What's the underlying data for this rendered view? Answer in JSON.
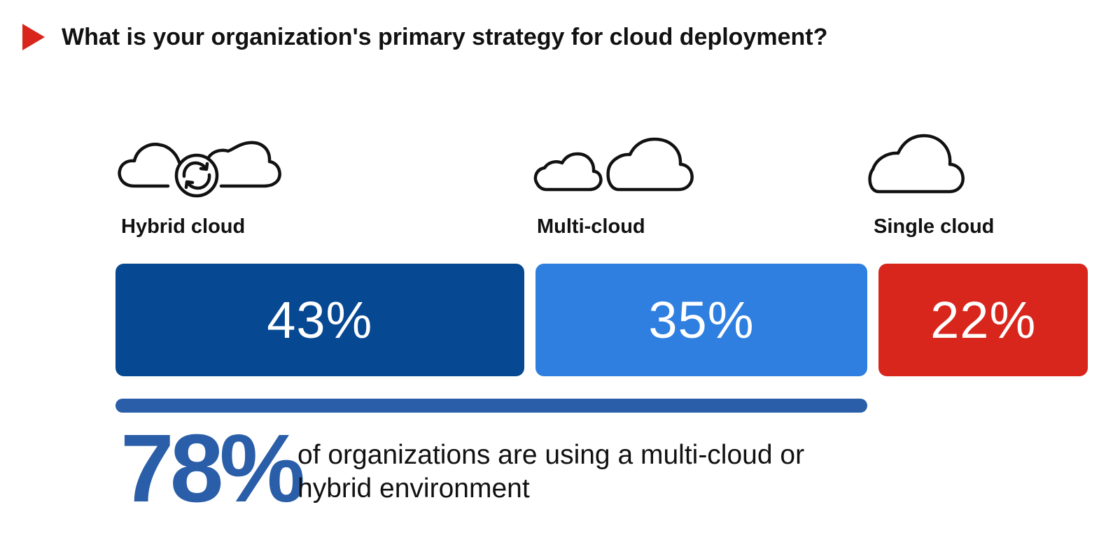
{
  "question": {
    "text": "What is your organization's primary strategy for cloud deployment?",
    "marker_icon": "play-triangle-icon",
    "marker_color": "#d8261c"
  },
  "chart_data": {
    "type": "bar",
    "orientation": "stacked-horizontal",
    "categories": [
      "Hybrid cloud",
      "Multi-cloud",
      "Single cloud"
    ],
    "values": [
      43,
      35,
      22
    ],
    "value_labels": [
      "43%",
      "35%",
      "22%"
    ],
    "unit": "%",
    "colors": [
      "#064892",
      "#2e7fe0",
      "#d8261c"
    ],
    "icons": [
      "hybrid-cloud-icon",
      "multi-cloud-icon",
      "single-cloud-icon"
    ],
    "title": "",
    "legend": "none",
    "grid": false
  },
  "summary": {
    "value": "78%",
    "text": "of organizations are using a multi-cloud or hybrid environment",
    "color": "#2a5ea9",
    "covers_categories": [
      "Hybrid cloud",
      "Multi-cloud"
    ]
  }
}
